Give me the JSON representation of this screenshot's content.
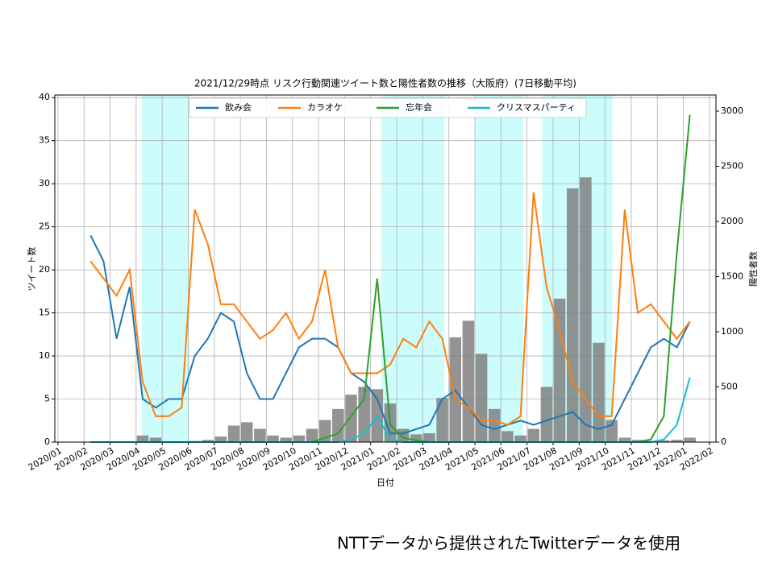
{
  "chart_data": {
    "type": "line",
    "title": "2021/12/29時点 リスク行動関連ツイート数と陽性者数の推移（大阪府）(7日移動平均)",
    "xlabel": "日付",
    "ylabel": "ツイート数",
    "y2label": "陽性者数",
    "footnote": "NTTデータから提供されたTwitterデータを使用",
    "x": [
      1.25,
      1.75,
      2.25,
      2.75,
      3.25,
      3.75,
      4.25,
      4.75,
      5.25,
      5.75,
      6.25,
      6.75,
      7.25,
      7.75,
      8.25,
      8.75,
      9.25,
      9.75,
      10.25,
      10.75,
      11.25,
      11.75,
      12.25,
      12.75,
      13.25,
      13.75,
      14.25,
      14.75,
      15.25,
      15.75,
      16.25,
      16.75,
      17.25,
      17.75,
      18.25,
      18.75,
      19.25,
      19.75,
      20.25,
      20.75,
      21.25,
      21.75,
      22.25,
      22.75,
      23.25,
      23.75,
      24.25
    ],
    "series": [
      {
        "name": "飲み会",
        "color": "#1f77b4",
        "values": [
          24,
          21,
          12,
          18,
          5,
          4,
          5,
          5,
          10,
          12,
          15,
          14,
          8,
          5,
          5,
          8,
          11,
          12,
          12,
          11,
          8,
          7,
          5,
          1,
          1,
          1.5,
          2,
          5,
          6,
          4,
          2,
          1.5,
          2,
          2.5,
          2,
          2.5,
          3,
          3.5,
          2,
          1.5,
          2,
          5,
          8,
          11,
          12,
          11,
          14
        ]
      },
      {
        "name": "カラオケ",
        "color": "#ff7f0e",
        "values": [
          21,
          19,
          17,
          20,
          7,
          3,
          3,
          4,
          27,
          23,
          16,
          16,
          14,
          12,
          13,
          15,
          12,
          14,
          20,
          11,
          8,
          8,
          8,
          9,
          12,
          11,
          14,
          12,
          5,
          4,
          2.5,
          2.5,
          2,
          3,
          29,
          18,
          13,
          7,
          5,
          3,
          3,
          27,
          15,
          16,
          14,
          12,
          14
        ]
      },
      {
        "name": "忘年会",
        "color": "#2ca02c",
        "values": [
          0,
          0,
          0,
          0,
          0,
          0,
          0,
          0,
          0,
          0,
          0,
          0,
          0,
          0,
          0,
          0,
          0,
          0,
          0.5,
          1,
          3,
          5,
          19,
          2,
          0.5,
          0.2,
          0,
          0,
          0,
          0,
          0,
          0,
          0,
          0,
          0,
          0,
          0,
          0,
          0,
          0,
          0,
          0,
          0,
          0.3,
          3,
          22,
          38
        ]
      },
      {
        "name": "クリスマスパーティ",
        "color": "#17becf",
        "values": [
          0,
          0,
          0,
          0,
          0,
          0,
          0,
          0,
          0,
          0,
          0,
          0,
          0,
          0,
          0,
          0,
          0,
          0,
          0,
          0,
          0.3,
          1,
          3,
          0.3,
          0,
          0,
          0,
          0,
          0,
          0,
          0,
          0,
          0,
          0,
          0,
          0,
          0,
          0,
          0,
          0,
          0,
          0,
          0,
          0,
          0.3,
          2,
          7.5
        ]
      }
    ],
    "bar_values": [
      0,
      0,
      0,
      0,
      60,
      40,
      5,
      5,
      10,
      20,
      50,
      150,
      180,
      120,
      60,
      40,
      60,
      120,
      200,
      300,
      430,
      500,
      480,
      350,
      120,
      70,
      80,
      400,
      950,
      1100,
      800,
      300,
      100,
      60,
      120,
      500,
      1300,
      2300,
      2400,
      900,
      200,
      40,
      20,
      10,
      15,
      20,
      40
    ],
    "bar_color": "#808080",
    "shaded_spans": [
      [
        3.22,
        5.05
      ],
      [
        12.41,
        14.83
      ],
      [
        16.0,
        17.86
      ],
      [
        18.58,
        21.27
      ]
    ],
    "shade_color": "#ccfcfc",
    "xlim": [
      -0.12,
      25.25
    ],
    "xticks": [
      {
        "value": 0,
        "label": "2020/01"
      },
      {
        "value": 1,
        "label": "2020/02"
      },
      {
        "value": 2,
        "label": "2020/03"
      },
      {
        "value": 3,
        "label": "2020/04"
      },
      {
        "value": 4,
        "label": "2020/05"
      },
      {
        "value": 5,
        "label": "2020/06"
      },
      {
        "value": 6,
        "label": "2020/07"
      },
      {
        "value": 7,
        "label": "2020/08"
      },
      {
        "value": 8,
        "label": "2020/09"
      },
      {
        "value": 9,
        "label": "2020/10"
      },
      {
        "value": 10,
        "label": "2020/11"
      },
      {
        "value": 11,
        "label": "2020/12"
      },
      {
        "value": 12,
        "label": "2021/01"
      },
      {
        "value": 13,
        "label": "2021/02"
      },
      {
        "value": 14,
        "label": "2021/03"
      },
      {
        "value": 15,
        "label": "2021/04"
      },
      {
        "value": 16,
        "label": "2021/05"
      },
      {
        "value": 17,
        "label": "2021/06"
      },
      {
        "value": 18,
        "label": "2021/07"
      },
      {
        "value": 19,
        "label": "2021/08"
      },
      {
        "value": 20,
        "label": "2021/09"
      },
      {
        "value": 21,
        "label": "2021/10"
      },
      {
        "value": 22,
        "label": "2021/11"
      },
      {
        "value": 23,
        "label": "2021/12"
      },
      {
        "value": 24,
        "label": "2022/01"
      },
      {
        "value": 25,
        "label": "2022/02"
      }
    ],
    "ylim": [
      0,
      40.3
    ],
    "yticks": [
      0,
      5,
      10,
      15,
      20,
      25,
      30,
      35,
      40
    ],
    "y2lim": [
      0,
      3146
    ],
    "y2ticks": [
      0,
      500,
      1000,
      1500,
      2000,
      2500,
      3000
    ],
    "grid": true
  }
}
